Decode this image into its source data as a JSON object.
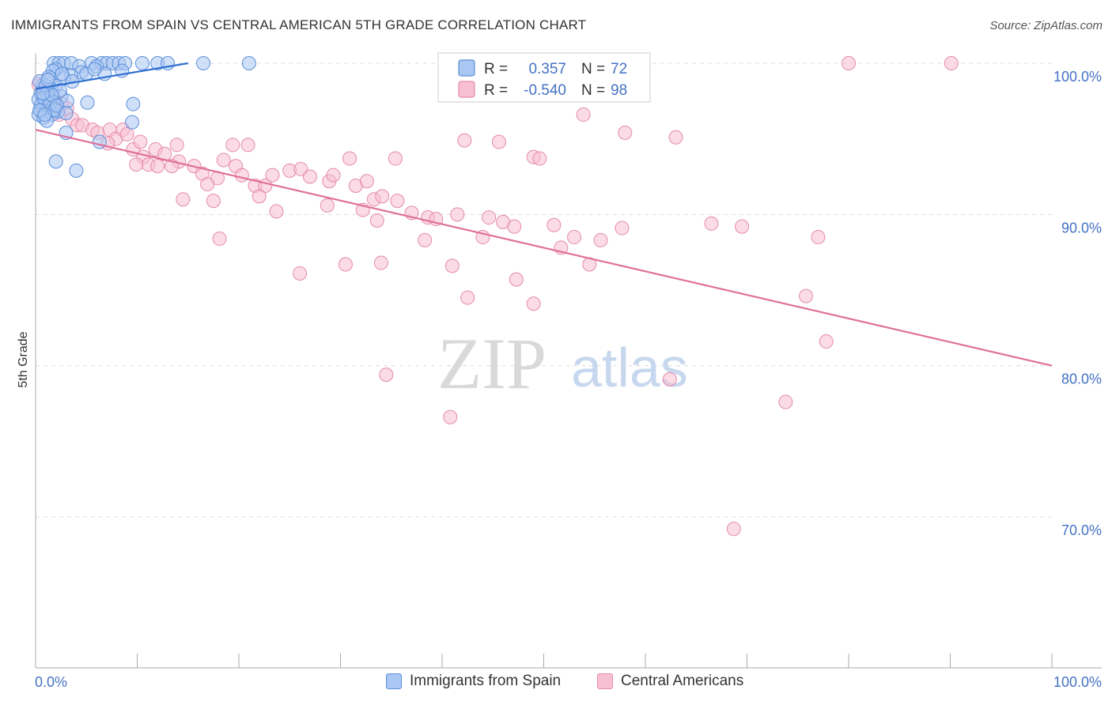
{
  "header": {
    "title": "IMMIGRANTS FROM SPAIN VS CENTRAL AMERICAN 5TH GRADE CORRELATION CHART",
    "source": "Source: ZipAtlas.com"
  },
  "watermark": {
    "zip": "ZIP",
    "atlas": "atlas"
  },
  "colors": {
    "blue_fill": "#a9c7f2",
    "blue_stroke": "#5b8fd8",
    "blue_line": "#2f6fd1",
    "pink_fill": "#f7bfd2",
    "pink_stroke": "#e58aa9",
    "pink_line": "#e0709a",
    "tick_text": "#4472c4",
    "grid": "#dddddd"
  },
  "legend": {
    "r_label": "R =",
    "n_label": "N =",
    "rows": [
      {
        "r": "0.357",
        "n": "72"
      },
      {
        "r": "-0.540",
        "n": "98"
      }
    ]
  },
  "chart_data": {
    "type": "scatter",
    "title": "IMMIGRANTS FROM SPAIN VS CENTRAL AMERICAN 5TH GRADE CORRELATION CHART",
    "ylabel": "5th Grade",
    "xlabel": "",
    "xlim": [
      0,
      100
    ],
    "ylim": [
      60,
      100
    ],
    "x_tick_labels": [
      "0.0%",
      "100.0%"
    ],
    "y_tick_labels": [
      {
        "value": 100,
        "label": "100.0%"
      },
      {
        "value": 90,
        "label": "90.0%"
      },
      {
        "value": 80,
        "label": "80.0%"
      },
      {
        "value": 70,
        "label": "70.0%"
      }
    ],
    "grid": true,
    "legend_position": "top-center",
    "series": [
      {
        "name": "Immigrants from Spain",
        "color": "#5b8fd8",
        "r": 0.357,
        "n": 72,
        "trend": {
          "x0": 0.0,
          "y0": 98.3,
          "x1": 15.0,
          "y1": 100.0
        },
        "points": [
          [
            1.8,
            100
          ],
          [
            2.3,
            100
          ],
          [
            2.8,
            100
          ],
          [
            3.5,
            100
          ],
          [
            5.5,
            100
          ],
          [
            6.5,
            100
          ],
          [
            7.0,
            100
          ],
          [
            7.6,
            100
          ],
          [
            8.2,
            100
          ],
          [
            8.8,
            100
          ],
          [
            10.5,
            100
          ],
          [
            12.0,
            100
          ],
          [
            13.0,
            100
          ],
          [
            16.5,
            100
          ],
          [
            21.0,
            100
          ],
          [
            6.0,
            99.8
          ],
          [
            4.3,
            99.8
          ],
          [
            2.0,
            99.6
          ],
          [
            1.7,
            99.5
          ],
          [
            4.5,
            99.4
          ],
          [
            5.0,
            99.3
          ],
          [
            6.8,
            99.3
          ],
          [
            8.5,
            99.5
          ],
          [
            3.5,
            99.2
          ],
          [
            2.8,
            99.0
          ],
          [
            1.5,
            99.0
          ],
          [
            3.6,
            98.8
          ],
          [
            0.8,
            98.6
          ],
          [
            2.0,
            98.5
          ],
          [
            1.5,
            98.3
          ],
          [
            1.3,
            98.2
          ],
          [
            0.5,
            98.0
          ],
          [
            0.9,
            97.9
          ],
          [
            1.6,
            97.8
          ],
          [
            2.5,
            97.8
          ],
          [
            0.3,
            97.6
          ],
          [
            1.0,
            97.5
          ],
          [
            1.8,
            97.4
          ],
          [
            3.1,
            97.5
          ],
          [
            5.1,
            97.4
          ],
          [
            0.5,
            97.2
          ],
          [
            1.2,
            97.1
          ],
          [
            1.9,
            97.0
          ],
          [
            0.6,
            96.9
          ],
          [
            1.4,
            96.8
          ],
          [
            2.2,
            96.8
          ],
          [
            0.3,
            96.6
          ],
          [
            1.6,
            96.6
          ],
          [
            0.8,
            96.4
          ],
          [
            1.1,
            96.2
          ],
          [
            9.6,
            97.3
          ],
          [
            9.5,
            96.1
          ],
          [
            3.0,
            95.4
          ],
          [
            6.3,
            94.8
          ],
          [
            2.0,
            93.5
          ],
          [
            4.0,
            92.9
          ],
          [
            0.4,
            98.8
          ],
          [
            1.0,
            98.5
          ],
          [
            1.3,
            99.1
          ],
          [
            2.6,
            99.3
          ],
          [
            0.8,
            97.7
          ],
          [
            1.4,
            97.3
          ],
          [
            1.9,
            96.9
          ],
          [
            2.4,
            98.2
          ],
          [
            0.4,
            96.9
          ],
          [
            0.9,
            96.6
          ],
          [
            1.6,
            97.9
          ],
          [
            0.7,
            98.0
          ],
          [
            2.1,
            97.2
          ],
          [
            3.0,
            96.7
          ],
          [
            1.2,
            98.9
          ],
          [
            5.8,
            99.6
          ]
        ]
      },
      {
        "name": "Central Americans",
        "color": "#e58aa9",
        "r": -0.54,
        "n": 98,
        "trend": {
          "x0": 0.0,
          "y0": 95.6,
          "x1": 100.0,
          "y1": 80.0
        },
        "points": [
          [
            0.3,
            98.6
          ],
          [
            0.8,
            98.2
          ],
          [
            1.2,
            97.8
          ],
          [
            1.9,
            97.6
          ],
          [
            2.6,
            97.3
          ],
          [
            3.1,
            97.0
          ],
          [
            1.5,
            96.9
          ],
          [
            2.3,
            96.6
          ],
          [
            3.6,
            96.3
          ],
          [
            4.1,
            95.9
          ],
          [
            4.6,
            95.9
          ],
          [
            5.6,
            95.6
          ],
          [
            6.1,
            95.4
          ],
          [
            7.3,
            95.6
          ],
          [
            7.9,
            95.0
          ],
          [
            8.6,
            95.6
          ],
          [
            9.0,
            95.3
          ],
          [
            7.1,
            94.7
          ],
          [
            9.6,
            94.3
          ],
          [
            10.3,
            94.8
          ],
          [
            11.8,
            94.3
          ],
          [
            12.7,
            94.0
          ],
          [
            13.9,
            94.6
          ],
          [
            10.6,
            93.8
          ],
          [
            11.1,
            93.3
          ],
          [
            12.0,
            93.2
          ],
          [
            14.1,
            93.5
          ],
          [
            9.9,
            93.3
          ],
          [
            13.4,
            93.2
          ],
          [
            15.6,
            93.2
          ],
          [
            16.4,
            92.7
          ],
          [
            17.9,
            92.4
          ],
          [
            16.9,
            92.0
          ],
          [
            18.5,
            93.6
          ],
          [
            19.4,
            94.6
          ],
          [
            20.9,
            94.6
          ],
          [
            19.7,
            93.2
          ],
          [
            20.3,
            92.6
          ],
          [
            21.6,
            91.9
          ],
          [
            22.6,
            91.9
          ],
          [
            23.3,
            92.6
          ],
          [
            25.0,
            92.9
          ],
          [
            26.1,
            93.0
          ],
          [
            27.0,
            92.5
          ],
          [
            28.9,
            92.2
          ],
          [
            29.3,
            92.6
          ],
          [
            30.9,
            93.7
          ],
          [
            31.5,
            91.9
          ],
          [
            32.6,
            92.2
          ],
          [
            33.3,
            91.0
          ],
          [
            34.1,
            91.2
          ],
          [
            35.6,
            90.9
          ],
          [
            37.0,
            90.1
          ],
          [
            38.6,
            89.8
          ],
          [
            39.4,
            89.7
          ],
          [
            41.5,
            90.0
          ],
          [
            44.6,
            89.8
          ],
          [
            46.0,
            89.5
          ],
          [
            47.1,
            89.2
          ],
          [
            49.0,
            93.8
          ],
          [
            49.6,
            93.7
          ],
          [
            42.2,
            94.9
          ],
          [
            45.6,
            94.8
          ],
          [
            35.4,
            93.7
          ],
          [
            33.6,
            89.6
          ],
          [
            32.2,
            90.3
          ],
          [
            28.7,
            90.6
          ],
          [
            18.1,
            88.4
          ],
          [
            22.0,
            91.2
          ],
          [
            23.7,
            90.2
          ],
          [
            14.5,
            91.0
          ],
          [
            17.5,
            90.9
          ],
          [
            38.3,
            88.3
          ],
          [
            44.0,
            88.5
          ],
          [
            41.0,
            86.6
          ],
          [
            34.0,
            86.8
          ],
          [
            30.5,
            86.7
          ],
          [
            26.0,
            86.1
          ],
          [
            51.0,
            89.3
          ],
          [
            53.0,
            88.5
          ],
          [
            55.6,
            88.3
          ],
          [
            54.5,
            86.7
          ],
          [
            51.7,
            87.8
          ],
          [
            47.3,
            85.7
          ],
          [
            42.5,
            84.5
          ],
          [
            49.0,
            84.1
          ],
          [
            53.9,
            96.6
          ],
          [
            58.0,
            95.4
          ],
          [
            63.0,
            95.1
          ],
          [
            66.5,
            89.4
          ],
          [
            69.5,
            89.2
          ],
          [
            57.7,
            89.1
          ],
          [
            77.0,
            88.5
          ],
          [
            75.8,
            84.6
          ],
          [
            77.8,
            81.6
          ],
          [
            62.4,
            79.1
          ],
          [
            34.5,
            79.4
          ],
          [
            73.8,
            77.6
          ]
        ],
        "extra_points": [
          [
            40.8,
            76.6
          ],
          [
            68.7,
            69.2
          ],
          [
            90.1,
            100
          ],
          [
            80.0,
            100
          ]
        ]
      }
    ],
    "bottom_legend": [
      "Immigrants from Spain",
      "Central Americans"
    ]
  }
}
